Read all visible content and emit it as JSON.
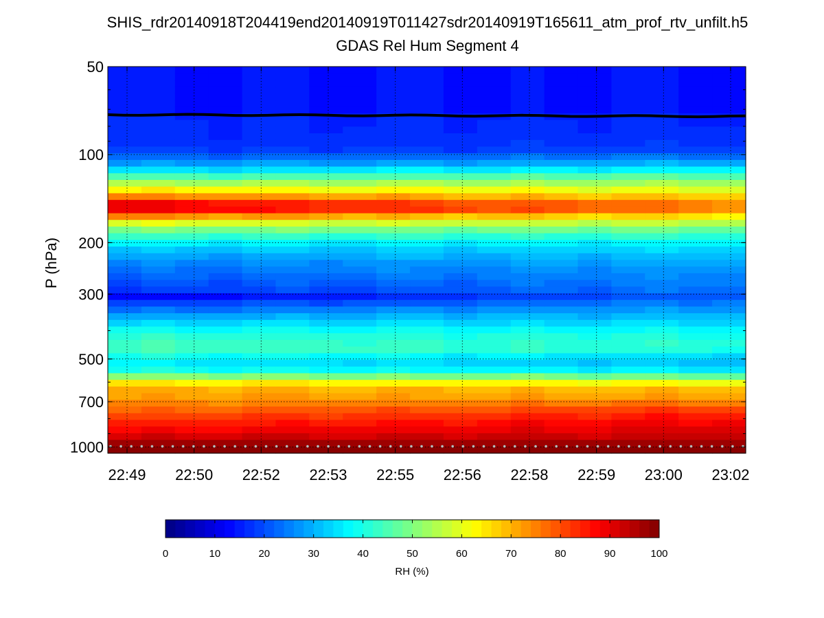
{
  "chart_data": {
    "type": "heatmap",
    "title": "SHIS_rdr20140918T204419end20140919T011427sdr20140919T165611_atm_prof_rtv_unfilt.h5",
    "subtitle": "GDAS Rel Hum Segment 4",
    "ylabel": "P (hPa)",
    "y_scale": "log",
    "y_reversed": true,
    "ylim": [
      50,
      1050
    ],
    "y_ticks": [
      50,
      100,
      200,
      300,
      500,
      700,
      1000
    ],
    "x_tick_labels": [
      "22:49",
      "22:50",
      "22:52",
      "22:53",
      "22:55",
      "22:56",
      "22:58",
      "22:59",
      "23:00",
      "23:02"
    ],
    "grid": true,
    "colorbar": {
      "label": "RH (%)",
      "range": [
        0,
        100
      ],
      "ticks": [
        0,
        10,
        20,
        30,
        40,
        50,
        60,
        70,
        80,
        90,
        100
      ],
      "colormap": "jet",
      "levels": 50
    },
    "overlay_line": {
      "color": "#000000",
      "pressure_start": 73,
      "pressure_end": 74
    },
    "rh_profile_start": [
      [
        50,
        14
      ],
      [
        72,
        14
      ],
      [
        74,
        16
      ],
      [
        95,
        17
      ],
      [
        105,
        25
      ],
      [
        112,
        33
      ],
      [
        120,
        46
      ],
      [
        128,
        58
      ],
      [
        134,
        66
      ],
      [
        140,
        76
      ],
      [
        146,
        88
      ],
      [
        152,
        93
      ],
      [
        158,
        85
      ],
      [
        165,
        70
      ],
      [
        175,
        55
      ],
      [
        188,
        44
      ],
      [
        205,
        34
      ],
      [
        230,
        26
      ],
      [
        260,
        22
      ],
      [
        290,
        18
      ],
      [
        305,
        12
      ],
      [
        330,
        21
      ],
      [
        370,
        32
      ],
      [
        410,
        41
      ],
      [
        460,
        45
      ],
      [
        510,
        36
      ],
      [
        550,
        40
      ],
      [
        590,
        58
      ],
      [
        620,
        70
      ],
      [
        680,
        72
      ],
      [
        760,
        78
      ],
      [
        850,
        86
      ],
      [
        930,
        92
      ],
      [
        980,
        98
      ],
      [
        1000,
        99
      ]
    ],
    "rh_profile_end": [
      [
        50,
        14
      ],
      [
        72,
        14
      ],
      [
        74,
        16
      ],
      [
        95,
        18
      ],
      [
        105,
        27
      ],
      [
        112,
        36
      ],
      [
        120,
        48
      ],
      [
        128,
        56
      ],
      [
        134,
        62
      ],
      [
        140,
        68
      ],
      [
        146,
        74
      ],
      [
        152,
        77
      ],
      [
        158,
        70
      ],
      [
        165,
        62
      ],
      [
        175,
        52
      ],
      [
        188,
        43
      ],
      [
        205,
        35
      ],
      [
        230,
        30
      ],
      [
        260,
        26
      ],
      [
        290,
        24
      ],
      [
        305,
        22
      ],
      [
        330,
        26
      ],
      [
        370,
        33
      ],
      [
        410,
        39
      ],
      [
        460,
        42
      ],
      [
        510,
        30
      ],
      [
        550,
        36
      ],
      [
        590,
        56
      ],
      [
        620,
        68
      ],
      [
        680,
        72
      ],
      [
        760,
        84
      ],
      [
        850,
        90
      ],
      [
        930,
        93
      ],
      [
        980,
        98
      ],
      [
        1000,
        99
      ]
    ]
  }
}
